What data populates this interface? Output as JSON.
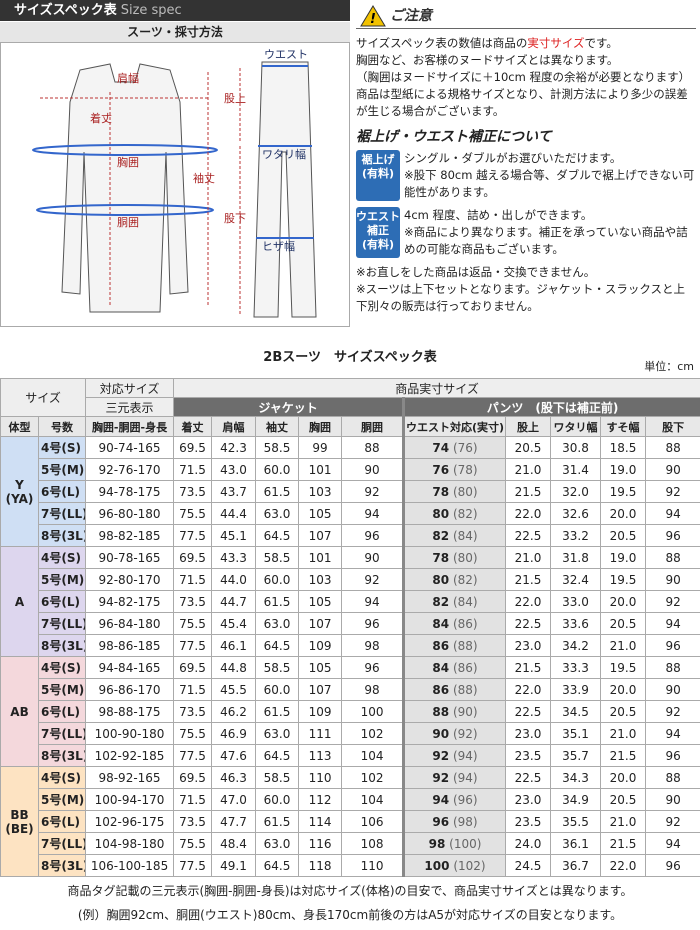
{
  "header": {
    "title": "サイズスペック表",
    "title_en": "Size spec",
    "subtitle": "スーツ・採寸方法"
  },
  "diagram": {
    "shoulder": "肩幅",
    "length": "着丈",
    "chest": "胸囲",
    "waist": "胴囲",
    "sleeve": "袖丈",
    "rise": "股上",
    "inseam": "股下",
    "pants_waist": "ウエスト",
    "thigh": "ワタリ幅",
    "knee": "ヒザ幅"
  },
  "notice": {
    "title": "ご注意",
    "line0": [
      "サイズスペック表の数値は商品の",
      "実寸サイズ",
      "です。"
    ],
    "lines": [
      "胸囲など、お客様のヌードサイズとは異なります。",
      "（胸囲はヌードサイズに＋10cm 程度の余裕が必要となります）",
      "商品は型紙による規格サイズとなり、計測方法により多少の誤差が生じる場合がございます。"
    ]
  },
  "alteration": {
    "title": "裾上げ・ウエスト補正について",
    "items": [
      {
        "badge": [
          "裾上げ",
          "(有料)"
        ],
        "lines": [
          "シングル・ダブルがお選びいただけます。",
          "※股下 80cm 越える場合等、ダブルで裾上げできない可能性があります。"
        ]
      },
      {
        "badge": [
          "ウエスト",
          "補正",
          "(有料)"
        ],
        "lines": [
          "4cm 程度、詰め・出しができます。",
          "※商品により異なります。補正を承っていない商品や詰めの可能な商品もございます。"
        ]
      }
    ]
  },
  "notes": [
    "※お直しをした商品は返品・交換できません。",
    "※スーツは上下セットとなります。ジャケット・スラックスと上下別々の販売は行っておりません。"
  ],
  "table": {
    "title": "2Bスーツ　サイズスペック表",
    "unit": "単位：cm",
    "head": {
      "size": "サイズ",
      "fit": "対応サイズ",
      "actual": "商品実寸サイズ",
      "sanbun": "三元表示",
      "jacket": "ジャケット",
      "pants": "パンツ　(股下は補正前)",
      "cols": [
        "体型",
        "号数",
        "胸囲-胴囲-身長",
        "着丈",
        "肩幅",
        "袖丈",
        "胸囲",
        "胴囲",
        "ウエスト対応(実寸)",
        "股上",
        "ワタリ幅",
        "すそ幅",
        "股下"
      ]
    },
    "groups": [
      {
        "type": [
          "Y",
          "(YA)"
        ],
        "rows": [
          [
            "4号(S)",
            "90-74-165",
            "69.5",
            "42.3",
            "58.5",
            "99",
            "88",
            "74",
            "(76)",
            "20.5",
            "30.8",
            "18.5",
            "88"
          ],
          [
            "5号(M)",
            "92-76-170",
            "71.5",
            "43.0",
            "60.0",
            "101",
            "90",
            "76",
            "(78)",
            "21.0",
            "31.4",
            "19.0",
            "90"
          ],
          [
            "6号(L)",
            "94-78-175",
            "73.5",
            "43.7",
            "61.5",
            "103",
            "92",
            "78",
            "(80)",
            "21.5",
            "32.0",
            "19.5",
            "92"
          ],
          [
            "7号(LL)",
            "96-80-180",
            "75.5",
            "44.4",
            "63.0",
            "105",
            "94",
            "80",
            "(82)",
            "22.0",
            "32.6",
            "20.0",
            "94"
          ],
          [
            "8号(3L)",
            "98-82-185",
            "77.5",
            "45.1",
            "64.5",
            "107",
            "96",
            "82",
            "(84)",
            "22.5",
            "33.2",
            "20.5",
            "96"
          ]
        ]
      },
      {
        "type": [
          "A"
        ],
        "rows": [
          [
            "4号(S)",
            "90-78-165",
            "69.5",
            "43.3",
            "58.5",
            "101",
            "90",
            "78",
            "(80)",
            "21.0",
            "31.8",
            "19.0",
            "88"
          ],
          [
            "5号(M)",
            "92-80-170",
            "71.5",
            "44.0",
            "60.0",
            "103",
            "92",
            "80",
            "(82)",
            "21.5",
            "32.4",
            "19.5",
            "90"
          ],
          [
            "6号(L)",
            "94-82-175",
            "73.5",
            "44.7",
            "61.5",
            "105",
            "94",
            "82",
            "(84)",
            "22.0",
            "33.0",
            "20.0",
            "92"
          ],
          [
            "7号(LL)",
            "96-84-180",
            "75.5",
            "45.4",
            "63.0",
            "107",
            "96",
            "84",
            "(86)",
            "22.5",
            "33.6",
            "20.5",
            "94"
          ],
          [
            "8号(3L)",
            "98-86-185",
            "77.5",
            "46.1",
            "64.5",
            "109",
            "98",
            "86",
            "(88)",
            "23.0",
            "34.2",
            "21.0",
            "96"
          ]
        ]
      },
      {
        "type": [
          "AB"
        ],
        "rows": [
          [
            "4号(S)",
            "94-84-165",
            "69.5",
            "44.8",
            "58.5",
            "105",
            "96",
            "84",
            "(86)",
            "21.5",
            "33.3",
            "19.5",
            "88"
          ],
          [
            "5号(M)",
            "96-86-170",
            "71.5",
            "45.5",
            "60.0",
            "107",
            "98",
            "86",
            "(88)",
            "22.0",
            "33.9",
            "20.0",
            "90"
          ],
          [
            "6号(L)",
            "98-88-175",
            "73.5",
            "46.2",
            "61.5",
            "109",
            "100",
            "88",
            "(90)",
            "22.5",
            "34.5",
            "20.5",
            "92"
          ],
          [
            "7号(LL)",
            "100-90-180",
            "75.5",
            "46.9",
            "63.0",
            "111",
            "102",
            "90",
            "(92)",
            "23.0",
            "35.1",
            "21.0",
            "94"
          ],
          [
            "8号(3L)",
            "102-92-185",
            "77.5",
            "47.6",
            "64.5",
            "113",
            "104",
            "92",
            "(94)",
            "23.5",
            "35.7",
            "21.5",
            "96"
          ]
        ]
      },
      {
        "type": [
          "BB",
          "(BE)"
        ],
        "rows": [
          [
            "4号(S)",
            "98-92-165",
            "69.5",
            "46.3",
            "58.5",
            "110",
            "102",
            "92",
            "(94)",
            "22.5",
            "34.3",
            "20.0",
            "88"
          ],
          [
            "5号(M)",
            "100-94-170",
            "71.5",
            "47.0",
            "60.0",
            "112",
            "104",
            "94",
            "(96)",
            "23.0",
            "34.9",
            "20.5",
            "90"
          ],
          [
            "6号(L)",
            "102-96-175",
            "73.5",
            "47.7",
            "61.5",
            "114",
            "106",
            "96",
            "(98)",
            "23.5",
            "35.5",
            "21.0",
            "92"
          ],
          [
            "7号(LL)",
            "104-98-180",
            "75.5",
            "48.4",
            "63.0",
            "116",
            "108",
            "98",
            "(100)",
            "24.0",
            "36.1",
            "21.5",
            "94"
          ],
          [
            "8号(3L)",
            "106-100-185",
            "77.5",
            "49.1",
            "64.5",
            "118",
            "110",
            "100",
            "(102)",
            "24.5",
            "36.7",
            "22.0",
            "96"
          ]
        ]
      }
    ]
  },
  "footnotes": [
    "商品タグ記載の三元表示(胸囲-胴囲-身長)は対応サイズ(体格)の目安で、商品実寸サイズとは異なります。",
    "(例）胸囲92cm、胴囲(ウエスト)80cm、身長170cm前後の方はA5が対応サイズの目安となります。"
  ]
}
